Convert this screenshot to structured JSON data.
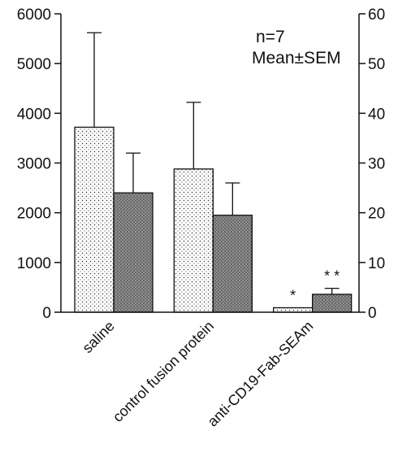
{
  "chart_data": {
    "type": "bar",
    "title": "",
    "xlabel": "",
    "ylabel": "",
    "y2label": "",
    "categories": [
      "saline",
      "control fusion protein",
      "anti-CD19-Fab-SEAm"
    ],
    "ylim": [
      0,
      6000
    ],
    "y_ticks": [
      "0",
      "1000",
      "2000",
      "3000",
      "4000",
      "5000",
      "6000"
    ],
    "y2lim": [
      0,
      60
    ],
    "y2_ticks": [
      "0",
      "10",
      "20",
      "30",
      "40",
      "50",
      "60"
    ],
    "series": [
      {
        "axis": "left",
        "pattern": "dotted",
        "values": [
          3720,
          2880,
          90
        ],
        "sem": [
          1900,
          1340,
          0
        ],
        "significance": [
          "",
          "",
          "*"
        ]
      },
      {
        "axis": "right",
        "pattern": "dark-stipple",
        "values": [
          24,
          19.5,
          3.6
        ],
        "sem": [
          8,
          6.5,
          1.2
        ],
        "significance": [
          "",
          "",
          "* *"
        ]
      }
    ],
    "annotations": [
      "n=7",
      "Mean±SEM"
    ],
    "grid": false,
    "legend": "none"
  }
}
